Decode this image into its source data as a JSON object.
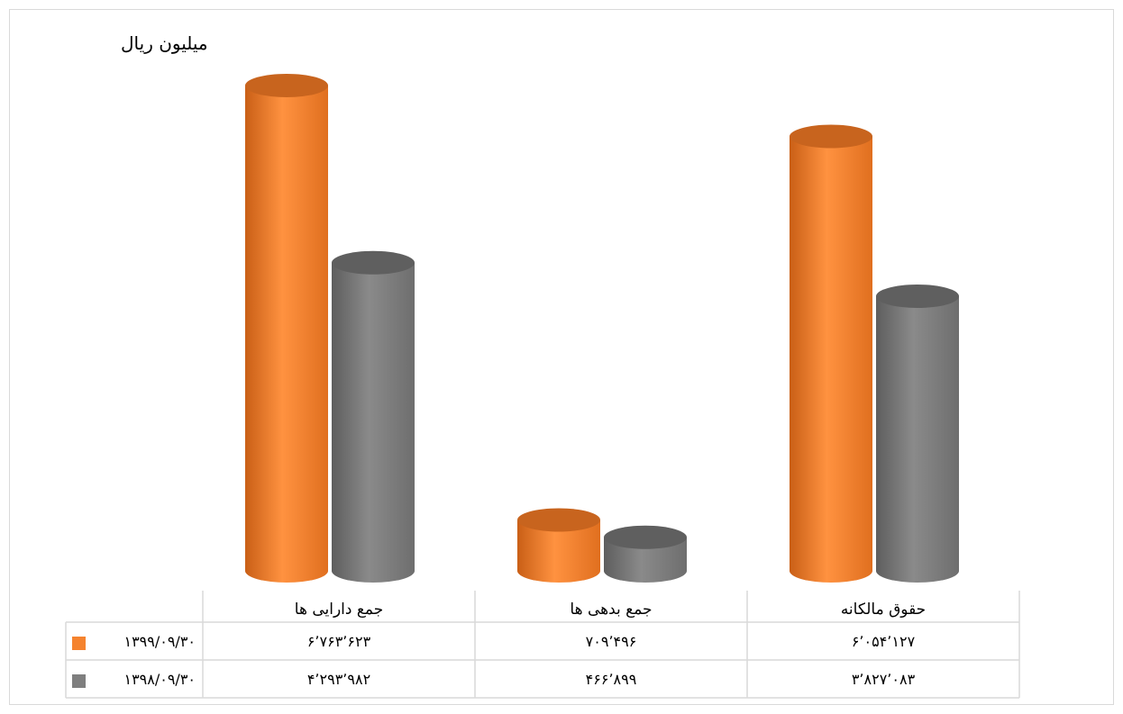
{
  "chart_data": {
    "type": "bar",
    "style": "3d-cylinder",
    "unit_label": "میلیون ریال",
    "categories": [
      "جمع دارایی ها",
      "جمع بدهی ها",
      "حقوق مالکانه"
    ],
    "series": [
      {
        "name": "۱۳۹۹/۰۹/۳۰",
        "color": "#f5832e",
        "values": [
          6763623,
          709496,
          6054127
        ],
        "labels": [
          "۶٬۷۶۳٬۶۲۳",
          "۷۰۹٬۴۹۶",
          "۶٬۰۵۴٬۱۲۷"
        ]
      },
      {
        "name": "۱۳۹۸/۰۹/۳۰",
        "color": "#7f7f7f",
        "values": [
          4293982,
          466899,
          3827083
        ],
        "labels": [
          "۴٬۲۹۳٬۹۸۲",
          "۴۶۶٬۸۹۹",
          "۳٬۸۲۷٬۰۸۳"
        ]
      }
    ],
    "ylim": [
      0,
      6763623
    ],
    "grid": false,
    "legend": "data-table"
  }
}
